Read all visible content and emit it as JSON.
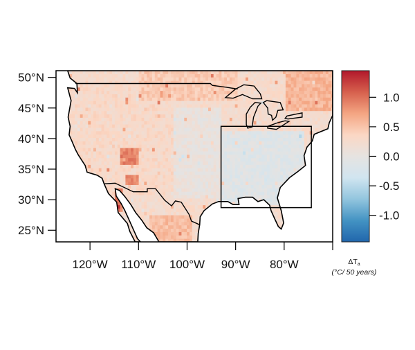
{
  "chart_data": {
    "type": "heatmap",
    "subtype": "gridded map",
    "title": "",
    "xlim": [
      -127,
      -70
    ],
    "ylim": [
      23.1,
      51.1
    ],
    "x_ticks": [
      {
        "value": -120,
        "label": "120°W"
      },
      {
        "value": -110,
        "label": "110°W"
      },
      {
        "value": -100,
        "label": "100°W"
      },
      {
        "value": -90,
        "label": "90°W"
      },
      {
        "value": -80,
        "label": "80°W"
      },
      {
        "value": -70,
        "label": ""
      }
    ],
    "y_ticks": [
      {
        "value": 50,
        "label": "50°N"
      },
      {
        "value": 45,
        "label": "45°N"
      },
      {
        "value": 40,
        "label": "40°N"
      },
      {
        "value": 35,
        "label": "35°N"
      },
      {
        "value": 30,
        "label": "30°N"
      },
      {
        "value": 25,
        "label": "25°N"
      }
    ],
    "highlight_box": {
      "lon": [
        -93,
        -74.4
      ],
      "lat": [
        28.7,
        42.0
      ]
    },
    "colorbar": {
      "range": [
        -1.45,
        1.45
      ],
      "ticks": [
        {
          "value": 1.0,
          "label": "1.0"
        },
        {
          "value": 0.5,
          "label": "0.5"
        },
        {
          "value": 0.0,
          "label": "0.0"
        },
        {
          "value": -0.5,
          "label": "-0.5"
        },
        {
          "value": -1.0,
          "label": "-1.0"
        }
      ],
      "colors": [
        "#2166ac",
        "#4393c3",
        "#92c5de",
        "#d1e5f0",
        "#e6e3e1",
        "#fbd7c4",
        "#f4a582",
        "#d6604d",
        "#b2182b"
      ],
      "label_symbol": "ΔT",
      "label_subscript": "a",
      "label_units": "(°C/ 50 years)"
    },
    "regional_values": [
      {
        "region": "west",
        "lon": [
          -125,
          -103
        ],
        "lat": [
          30,
          49
        ],
        "value": 0.3
      },
      {
        "region": "southwest hotspot",
        "lon": [
          -114,
          -110
        ],
        "lat": [
          35.5,
          38
        ],
        "value": 0.9
      },
      {
        "region": "arizona hotspot",
        "lon": [
          -113,
          -110.5
        ],
        "lat": [
          32,
          34
        ],
        "value": 0.9
      },
      {
        "region": "gulf of california coast",
        "lon": [
          -115,
          -113.5
        ],
        "lat": [
          28,
          31.5
        ],
        "value": 0.9
      },
      {
        "region": "central plains",
        "lon": [
          -103,
          -93
        ],
        "lat": [
          30,
          45
        ],
        "value": 0.05
      },
      {
        "region": "southeast",
        "lon": [
          -93,
          -76
        ],
        "lat": [
          29,
          41
        ],
        "value": -0.12
      },
      {
        "region": "northern border",
        "lon": [
          -110,
          -90
        ],
        "lat": [
          46,
          51
        ],
        "value": 0.45
      },
      {
        "region": "northeast canada",
        "lon": [
          -80,
          -70
        ],
        "lat": [
          44,
          51
        ],
        "value": 0.6
      },
      {
        "region": "mexico north",
        "lon": [
          -108,
          -99
        ],
        "lat": [
          23,
          27
        ],
        "value": 0.55
      }
    ],
    "land_outline": [
      [
        -124.6,
        51.1
      ],
      [
        -70,
        51.1
      ],
      [
        -70,
        43.8
      ],
      [
        -70.7,
        42.6
      ],
      [
        -71,
        41.6
      ],
      [
        -73.8,
        40.7
      ],
      [
        -74.2,
        39.6
      ],
      [
        -75.3,
        38.6
      ],
      [
        -75.9,
        37.2
      ],
      [
        -75.6,
        35.6
      ],
      [
        -77.2,
        34.6
      ],
      [
        -78.9,
        33.6
      ],
      [
        -80.8,
        32
      ],
      [
        -81.4,
        30.3
      ],
      [
        -80.6,
        28.2
      ],
      [
        -80.1,
        26.2
      ],
      [
        -80.6,
        25.2
      ],
      [
        -81.2,
        25.6
      ],
      [
        -81.9,
        26.8
      ],
      [
        -82.7,
        28.2
      ],
      [
        -83,
        29.1
      ],
      [
        -84.2,
        30
      ],
      [
        -85.4,
        29.7
      ],
      [
        -86.5,
        30.4
      ],
      [
        -88,
        30.4
      ],
      [
        -89.5,
        30.2
      ],
      [
        -89.3,
        29.2
      ],
      [
        -90.5,
        29.2
      ],
      [
        -91.6,
        29.7
      ],
      [
        -93.5,
        29.7
      ],
      [
        -94.8,
        29.3
      ],
      [
        -96.5,
        28.2
      ],
      [
        -97.3,
        27.2
      ],
      [
        -97.4,
        25.9
      ],
      [
        -97.7,
        24.5
      ],
      [
        -97.8,
        23.1
      ],
      [
        -105.8,
        23.1
      ],
      [
        -106.9,
        24.6
      ],
      [
        -108.3,
        25.4
      ],
      [
        -109.3,
        26.6
      ],
      [
        -110.6,
        27.9
      ],
      [
        -111.6,
        29.2
      ],
      [
        -112.8,
        30.5
      ],
      [
        -113.9,
        31.5
      ],
      [
        -114.8,
        31.8
      ],
      [
        -114.6,
        30.6
      ],
      [
        -113.6,
        29.4
      ],
      [
        -112.8,
        28.2
      ],
      [
        -111.9,
        26.6
      ],
      [
        -111,
        25
      ],
      [
        -110.2,
        23.6
      ],
      [
        -109.6,
        23.1
      ],
      [
        -110.7,
        23.1
      ],
      [
        -111.8,
        24.8
      ],
      [
        -112.3,
        26.1
      ],
      [
        -114.2,
        27.9
      ],
      [
        -114.5,
        29.6
      ],
      [
        -116.2,
        31
      ],
      [
        -117.1,
        32.6
      ],
      [
        -117.5,
        33.5
      ],
      [
        -118.5,
        34
      ],
      [
        -120.6,
        34.5
      ],
      [
        -121,
        35.6
      ],
      [
        -122.4,
        37.3
      ],
      [
        -123,
        38.2
      ],
      [
        -123.8,
        39.7
      ],
      [
        -124.3,
        40.6
      ],
      [
        -124.1,
        42
      ],
      [
        -124.5,
        43.5
      ],
      [
        -123.9,
        46.2
      ],
      [
        -124.6,
        48.3
      ],
      [
        -123.2,
        48.2
      ],
      [
        -122.6,
        47.5
      ],
      [
        -122.7,
        49
      ],
      [
        -124.1,
        49.9
      ],
      [
        -124.6,
        51.1
      ]
    ],
    "borders": [
      [
        [
          -123,
          49
        ],
        [
          -95.2,
          49
        ],
        [
          -94.8,
          48.7
        ],
        [
          -92,
          48.4
        ],
        [
          -89.6,
          48.1
        ]
      ],
      [
        [
          -117.1,
          32.6
        ],
        [
          -114.8,
          32.7
        ],
        [
          -111.1,
          31.3
        ],
        [
          -108.2,
          31.3
        ],
        [
          -108.2,
          31.8
        ],
        [
          -106.5,
          31.8
        ],
        [
          -104.6,
          29.9
        ],
        [
          -103.2,
          29
        ],
        [
          -102.4,
          29.8
        ],
        [
          -101.2,
          29.6
        ],
        [
          -99.6,
          27.6
        ],
        [
          -99.1,
          26.5
        ],
        [
          -97.4,
          25.9
        ]
      ]
    ],
    "lakes": [
      [
        [
          -92.1,
          46.7
        ],
        [
          -90.5,
          46.6
        ],
        [
          -88.6,
          47.2
        ],
        [
          -86.5,
          46.5
        ],
        [
          -84.6,
          46.5
        ],
        [
          -84.9,
          47.3
        ],
        [
          -86.2,
          48.6
        ],
        [
          -88.3,
          48.8
        ],
        [
          -90,
          48.1
        ],
        [
          -92.1,
          46.7
        ]
      ],
      [
        [
          -87.8,
          42.3
        ],
        [
          -87.5,
          41.7
        ],
        [
          -86.6,
          41.9
        ],
        [
          -86.3,
          43.5
        ],
        [
          -85.4,
          45.3
        ],
        [
          -84.8,
          45.8
        ],
        [
          -86,
          45.9
        ],
        [
          -87,
          45.1
        ],
        [
          -87.8,
          44
        ],
        [
          -87.8,
          42.3
        ]
      ],
      [
        [
          -82.4,
          43
        ],
        [
          -81.7,
          43.5
        ],
        [
          -81.3,
          44.6
        ],
        [
          -80.2,
          44.7
        ],
        [
          -80.8,
          45.9
        ],
        [
          -83.6,
          46.2
        ],
        [
          -84.3,
          45.9
        ],
        [
          -83.4,
          45
        ],
        [
          -83.3,
          44
        ],
        [
          -82.6,
          43.8
        ],
        [
          -82.4,
          43
        ]
      ],
      [
        [
          -83.4,
          41.7
        ],
        [
          -81.6,
          41.5
        ],
        [
          -79,
          42.8
        ],
        [
          -79.8,
          42.9
        ],
        [
          -81.3,
          42.6
        ],
        [
          -83.4,
          42
        ],
        [
          -83.4,
          41.7
        ]
      ],
      [
        [
          -79.8,
          43.3
        ],
        [
          -79.2,
          43.2
        ],
        [
          -76.3,
          43.5
        ],
        [
          -76.3,
          44.2
        ],
        [
          -77.5,
          44
        ],
        [
          -79.4,
          43.7
        ],
        [
          -79.8,
          43.3
        ]
      ]
    ]
  }
}
